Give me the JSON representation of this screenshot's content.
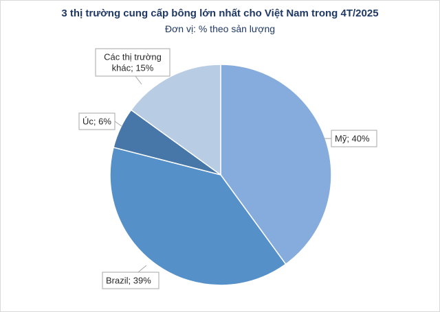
{
  "chart_data": {
    "type": "pie",
    "title": "3 thị trường cung cấp bông lớn nhất cho Việt Nam trong 4T/2025",
    "subtitle": "Đơn vị: % theo sản lượng",
    "slices": [
      {
        "label": "Mỹ",
        "value": 40,
        "label_text": [
          "Mỹ; 40%"
        ],
        "color": "#85acdc"
      },
      {
        "label": "Brazil",
        "value": 39,
        "label_text": [
          "Brazil; 39%"
        ],
        "color": "#5690c9"
      },
      {
        "label": "Úc",
        "value": 6,
        "label_text": [
          "Úc; 6%"
        ],
        "color": "#4677a8"
      },
      {
        "label": "Các thị trường khác",
        "value": 15,
        "label_text": [
          "Các thị trường",
          "khác; 15%"
        ],
        "color": "#b8cce4"
      }
    ],
    "start_angle_deg": 0,
    "direction": "clockwise",
    "legend": "none"
  }
}
